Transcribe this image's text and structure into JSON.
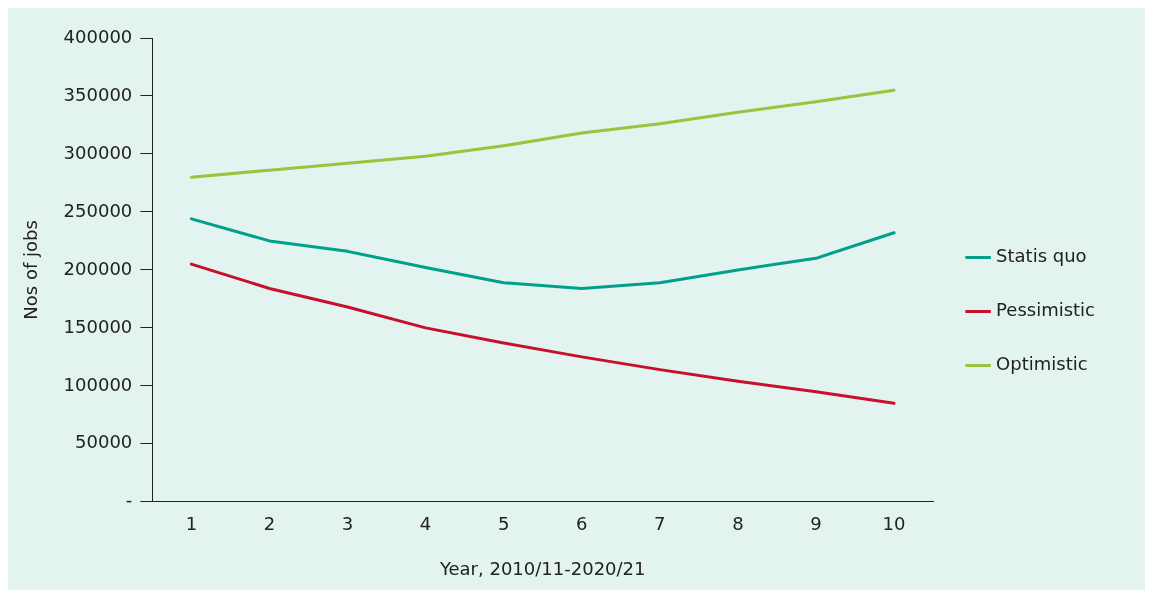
{
  "chart_data": {
    "type": "line",
    "xlabel": "Year, 2010/11-2020/21",
    "ylabel": "Nos of jobs",
    "categories": [
      "1",
      "2",
      "3",
      "4",
      "5",
      "6",
      "7",
      "8",
      "9",
      "10"
    ],
    "series": [
      {
        "name": "Statis quo",
        "color": "#00a08a",
        "values": [
          244000,
          225000,
          216000,
          202000,
          189000,
          184000,
          189000,
          200000,
          210000,
          232000
        ]
      },
      {
        "name": "Pessimistic",
        "color": "#c8102e",
        "values": [
          205000,
          184000,
          168000,
          150000,
          137000,
          125000,
          114000,
          104000,
          95000,
          85000
        ]
      },
      {
        "name": "Optimistic",
        "color": "#9bc33c",
        "values": [
          280000,
          286000,
          292000,
          298000,
          307000,
          318000,
          326000,
          336000,
          345000,
          355000
        ]
      }
    ],
    "ylim": [
      0,
      400000
    ],
    "yticks": [
      {
        "value": 0,
        "label": "-"
      },
      50000,
      100000,
      150000,
      200000,
      250000,
      300000,
      350000,
      400000
    ],
    "grid": false,
    "legend": "right",
    "marker": "none",
    "line_style": "solid"
  }
}
